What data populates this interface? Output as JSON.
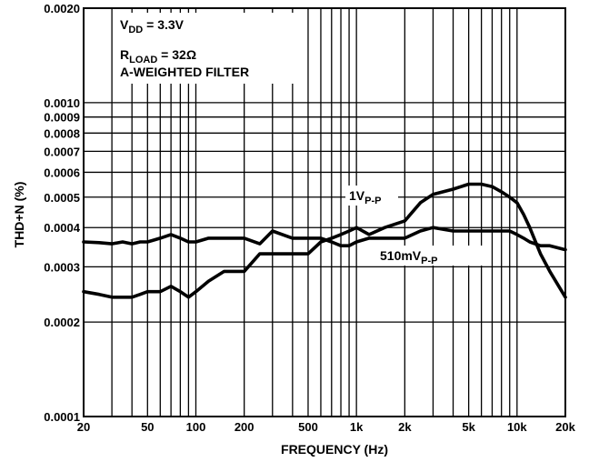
{
  "chart_data": {
    "type": "line",
    "xlabel": "FREQUENCY (Hz)",
    "ylabel": "THD+N (%)",
    "xscale": "log",
    "yscale": "log",
    "xlim": [
      20,
      20000
    ],
    "ylim": [
      0.0001,
      0.002
    ],
    "grid": true,
    "x_ticks": [
      {
        "value": 20,
        "label": "20"
      },
      {
        "value": 50,
        "label": "50"
      },
      {
        "value": 100,
        "label": "100"
      },
      {
        "value": 200,
        "label": "200"
      },
      {
        "value": 500,
        "label": "500"
      },
      {
        "value": 1000,
        "label": "1k"
      },
      {
        "value": 2000,
        "label": "2k"
      },
      {
        "value": 5000,
        "label": "5k"
      },
      {
        "value": 10000,
        "label": "10k"
      },
      {
        "value": 20000,
        "label": "20k"
      }
    ],
    "y_ticks": [
      {
        "value": 0.0001,
        "label": "0.0001"
      },
      {
        "value": 0.0002,
        "label": "0.0002"
      },
      {
        "value": 0.0003,
        "label": "0.0003"
      },
      {
        "value": 0.0004,
        "label": "0.0004"
      },
      {
        "value": 0.0005,
        "label": "0.0005"
      },
      {
        "value": 0.0006,
        "label": "0.0006"
      },
      {
        "value": 0.0007,
        "label": "0.0007"
      },
      {
        "value": 0.0008,
        "label": "0.0008"
      },
      {
        "value": 0.0009,
        "label": "0.0009"
      },
      {
        "value": 0.001,
        "label": "0.0010"
      },
      {
        "value": 0.002,
        "label": "0.0020"
      }
    ],
    "annotations": {
      "vdd": {
        "main": "V",
        "sub": "DD",
        "tail": " = 3.3V"
      },
      "rload": {
        "main": "R",
        "sub": "LOAD",
        "tail": " = 32Ω"
      },
      "filter": "A-WEIGHTED FILTER"
    },
    "series": [
      {
        "label_main": "1V",
        "label_sub": "P-P",
        "x": [
          20,
          25,
          30,
          35,
          40,
          45,
          50,
          55,
          60,
          70,
          80,
          90,
          100,
          120,
          150,
          200,
          250,
          300,
          400,
          500,
          600,
          700,
          800,
          900,
          1000,
          1200,
          1500,
          2000,
          2500,
          3000,
          4000,
          5000,
          6000,
          7000,
          8000,
          9000,
          10000,
          11000,
          12000,
          14000,
          16000,
          20000
        ],
        "y": [
          0.00025,
          0.000245,
          0.00024,
          0.00024,
          0.00024,
          0.000245,
          0.00025,
          0.00025,
          0.00025,
          0.00026,
          0.00025,
          0.00024,
          0.00025,
          0.00027,
          0.00029,
          0.00029,
          0.00033,
          0.00033,
          0.00033,
          0.00033,
          0.00036,
          0.00037,
          0.00038,
          0.00039,
          0.0004,
          0.00038,
          0.0004,
          0.00042,
          0.00048,
          0.00051,
          0.00053,
          0.00055,
          0.00055,
          0.00054,
          0.00052,
          0.0005,
          0.00048,
          0.00044,
          0.0004,
          0.00033,
          0.00029,
          0.00024
        ]
      },
      {
        "label_main": "510mV",
        "label_sub": "P-P",
        "x": [
          20,
          25,
          30,
          35,
          40,
          45,
          50,
          55,
          60,
          70,
          80,
          90,
          100,
          120,
          150,
          200,
          250,
          300,
          400,
          500,
          600,
          700,
          800,
          900,
          1000,
          1200,
          1500,
          2000,
          2500,
          3000,
          4000,
          5000,
          6000,
          7000,
          8000,
          9000,
          10000,
          11000,
          12000,
          14000,
          16000,
          20000
        ],
        "y": [
          0.00036,
          0.000358,
          0.000355,
          0.00036,
          0.000355,
          0.00036,
          0.00036,
          0.000365,
          0.00037,
          0.00038,
          0.00037,
          0.00036,
          0.00036,
          0.00037,
          0.00037,
          0.00037,
          0.000355,
          0.00039,
          0.00037,
          0.00037,
          0.00037,
          0.00036,
          0.00035,
          0.00035,
          0.00036,
          0.00037,
          0.00037,
          0.00037,
          0.00039,
          0.0004,
          0.00039,
          0.00039,
          0.00039,
          0.00039,
          0.00039,
          0.00039,
          0.00038,
          0.00037,
          0.00036,
          0.00035,
          0.00035,
          0.00034
        ]
      }
    ]
  }
}
